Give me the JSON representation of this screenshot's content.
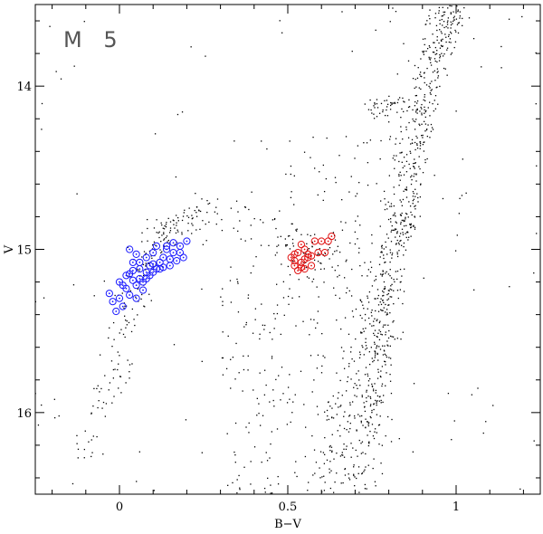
{
  "chart_data": {
    "type": "scatter",
    "annotation": "M 5",
    "xlabel": "B−V",
    "ylabel": "V",
    "xlim": [
      -0.25,
      1.25
    ],
    "ylim": [
      16.5,
      13.5
    ],
    "y_inverted": true,
    "x_ticks": [
      {
        "value": 0,
        "label": "0"
      },
      {
        "value": 0.5,
        "label": "0.5"
      },
      {
        "value": 1,
        "label": "1"
      }
    ],
    "y_ticks": [
      {
        "value": 14,
        "label": "14"
      },
      {
        "value": 15,
        "label": "15"
      },
      {
        "value": 16,
        "label": "16"
      }
    ],
    "x_minor_step": 0.1,
    "y_minor_step": 0.2,
    "grid": false,
    "series": [
      {
        "marker": "dot",
        "color": "#000000",
        "regions": [
          {
            "kind": "path",
            "points": [
              [
                -0.1,
                16.3
              ],
              [
                -0.04,
                15.9
              ],
              [
                0.0,
                15.6
              ],
              [
                0.03,
                15.35
              ],
              [
                0.07,
                15.1
              ],
              [
                0.12,
                14.95
              ],
              [
                0.18,
                14.85
              ],
              [
                0.25,
                14.72
              ]
            ],
            "spread": [
              0.025,
              0.05
            ],
            "count": 200
          },
          {
            "kind": "path",
            "points": [
              [
                0.18,
                14.85
              ],
              [
                0.3,
                14.8
              ],
              [
                0.42,
                14.85
              ],
              [
                0.5,
                14.95
              ],
              [
                0.58,
                15.0
              ],
              [
                0.65,
                15.1
              ]
            ],
            "spread": [
              0.05,
              0.08
            ],
            "count": 110
          },
          {
            "kind": "path",
            "points": [
              [
                0.73,
                16.5
              ],
              [
                0.75,
                16.0
              ],
              [
                0.77,
                15.6
              ],
              [
                0.79,
                15.25
              ],
              [
                0.82,
                14.95
              ],
              [
                0.85,
                14.6
              ],
              [
                0.88,
                14.2
              ],
              [
                0.92,
                13.8
              ],
              [
                0.97,
                13.5
              ]
            ],
            "spread": [
              0.025,
              0.05
            ],
            "count": 560
          },
          {
            "kind": "path",
            "points": [
              [
                0.85,
                15.0
              ],
              [
                0.88,
                14.5
              ],
              [
                0.93,
                14.0
              ],
              [
                0.98,
                13.7
              ],
              [
                1.01,
                13.5
              ]
            ],
            "spread": [
              0.015,
              0.04
            ],
            "count": 170
          },
          {
            "kind": "path",
            "points": [
              [
                0.62,
                16.5
              ],
              [
                0.66,
                16.2
              ],
              [
                0.7,
                15.85
              ],
              [
                0.74,
                15.5
              ],
              [
                0.77,
                15.15
              ]
            ],
            "spread": [
              0.035,
              0.06
            ],
            "count": 140
          },
          {
            "kind": "path",
            "points": [
              [
                0.76,
                14.15
              ],
              [
                0.8,
                14.1
              ],
              [
                0.84,
                14.12
              ]
            ],
            "spread": [
              0.02,
              0.03
            ],
            "count": 40
          },
          {
            "kind": "box",
            "x": [
              0.3,
              0.7
            ],
            "y": [
              15.1,
              16.5
            ],
            "count": 200
          },
          {
            "kind": "box",
            "x": [
              0.5,
              0.85
            ],
            "y": [
              14.3,
              15.2
            ],
            "count": 80
          },
          {
            "kind": "box",
            "x": [
              -0.25,
              1.25
            ],
            "y": [
              13.5,
              16.5
            ],
            "count": 130
          }
        ]
      },
      {
        "marker": "circle-dot",
        "color": "#1a1aff",
        "points": [
          [
            0.0,
            15.2
          ],
          [
            0.02,
            15.24
          ],
          [
            -0.02,
            15.32
          ],
          [
            0.03,
            15.28
          ],
          [
            -0.03,
            15.27
          ],
          [
            0.01,
            15.35
          ],
          [
            0.05,
            15.22
          ],
          [
            0.06,
            15.12
          ],
          [
            0.04,
            15.08
          ],
          [
            0.07,
            15.2
          ],
          [
            0.09,
            15.1
          ],
          [
            0.08,
            15.05
          ],
          [
            0.1,
            15.02
          ],
          [
            0.12,
            15.08
          ],
          [
            0.13,
            15.11
          ],
          [
            0.15,
            15.06
          ],
          [
            0.11,
            14.98
          ],
          [
            0.14,
            15.0
          ],
          [
            0.16,
            15.02
          ],
          [
            0.18,
            14.98
          ],
          [
            0.2,
            14.95
          ],
          [
            0.19,
            15.05
          ],
          [
            0.05,
            15.3
          ],
          [
            0.03,
            15.15
          ],
          [
            0.06,
            15.18
          ],
          [
            0.02,
            15.16
          ],
          [
            0.0,
            15.3
          ],
          [
            0.08,
            15.14
          ],
          [
            0.04,
            15.13
          ],
          [
            0.1,
            15.14
          ],
          [
            0.12,
            15.12
          ],
          [
            0.15,
            15.1
          ],
          [
            0.17,
            15.07
          ],
          [
            0.13,
            15.05
          ],
          [
            0.09,
            15.16
          ],
          [
            0.07,
            15.25
          ],
          [
            0.01,
            15.22
          ],
          [
            0.05,
            15.03
          ],
          [
            0.03,
            15.0
          ],
          [
            0.16,
            14.96
          ],
          [
            0.14,
            14.98
          ],
          [
            0.18,
            15.02
          ],
          [
            -0.01,
            15.38
          ],
          [
            0.06,
            15.08
          ],
          [
            0.1,
            15.09
          ],
          [
            0.08,
            15.18
          ],
          [
            0.04,
            15.19
          ],
          [
            0.11,
            15.12
          ]
        ]
      },
      {
        "marker": "circle-dot",
        "color": "#e01010",
        "points": [
          [
            0.51,
            15.05
          ],
          [
            0.52,
            15.1
          ],
          [
            0.53,
            15.02
          ],
          [
            0.54,
            15.08
          ],
          [
            0.55,
            15.12
          ],
          [
            0.53,
            15.13
          ],
          [
            0.56,
            15.05
          ],
          [
            0.57,
            15.1
          ],
          [
            0.55,
            15.0
          ],
          [
            0.54,
            14.97
          ],
          [
            0.56,
            15.03
          ],
          [
            0.58,
            14.95
          ],
          [
            0.6,
            14.95
          ],
          [
            0.62,
            14.95
          ],
          [
            0.63,
            14.92
          ],
          [
            0.61,
            15.02
          ],
          [
            0.59,
            15.02
          ],
          [
            0.52,
            15.07
          ],
          [
            0.55,
            15.06
          ],
          [
            0.57,
            15.04
          ],
          [
            0.54,
            15.11
          ],
          [
            0.52,
            15.03
          ]
        ]
      }
    ]
  }
}
